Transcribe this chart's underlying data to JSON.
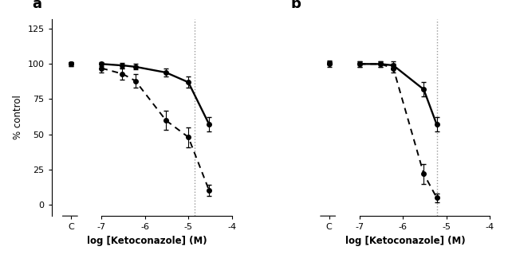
{
  "panel_a_label": "a",
  "panel_b_label": "b",
  "xlabel": "log [Ketoconazole] (M)",
  "ylabel": "% control",
  "yticks": [
    0,
    25,
    50,
    75,
    100,
    125
  ],
  "ylim": [
    -8,
    132
  ],
  "vline_a": -4.85,
  "vline_b": -5.22,
  "panel_a_solid_x": [
    -7.7,
    -7.0,
    -6.52,
    -6.22,
    -5.52,
    -5.0,
    -4.52
  ],
  "panel_a_solid_y": [
    100,
    100,
    99,
    98,
    94,
    87,
    57
  ],
  "panel_a_solid_err": [
    1.5,
    1.5,
    1.5,
    2,
    3,
    4,
    5
  ],
  "panel_a_dot_x": [
    -7.7,
    -7.0,
    -6.52,
    -6.22,
    -5.52,
    -5.0,
    -4.52
  ],
  "panel_a_dot_y": [
    100,
    97,
    93,
    88,
    60,
    48,
    10
  ],
  "panel_a_dot_err": [
    1.5,
    3,
    4,
    5,
    7,
    7,
    4
  ],
  "panel_b_solid_x": [
    -7.7,
    -7.0,
    -6.52,
    -6.22,
    -5.52,
    -5.22
  ],
  "panel_b_solid_y": [
    101,
    100,
    100,
    99,
    82,
    57
  ],
  "panel_b_solid_err": [
    1.5,
    2,
    2,
    3,
    5,
    5
  ],
  "panel_b_dot_x": [
    -7.7,
    -7.0,
    -6.52,
    -6.22,
    -5.52,
    -5.22
  ],
  "panel_b_dot_y": [
    100,
    100,
    100,
    97,
    22,
    5
  ],
  "panel_b_dot_err": [
    2,
    2,
    2,
    3,
    7,
    3
  ],
  "line_color": "#000000",
  "background_color": "#ffffff",
  "vline_color": "#999999",
  "panel_label_fontsize": 13,
  "axis_label_fontsize": 8.5,
  "tick_label_fontsize": 8
}
